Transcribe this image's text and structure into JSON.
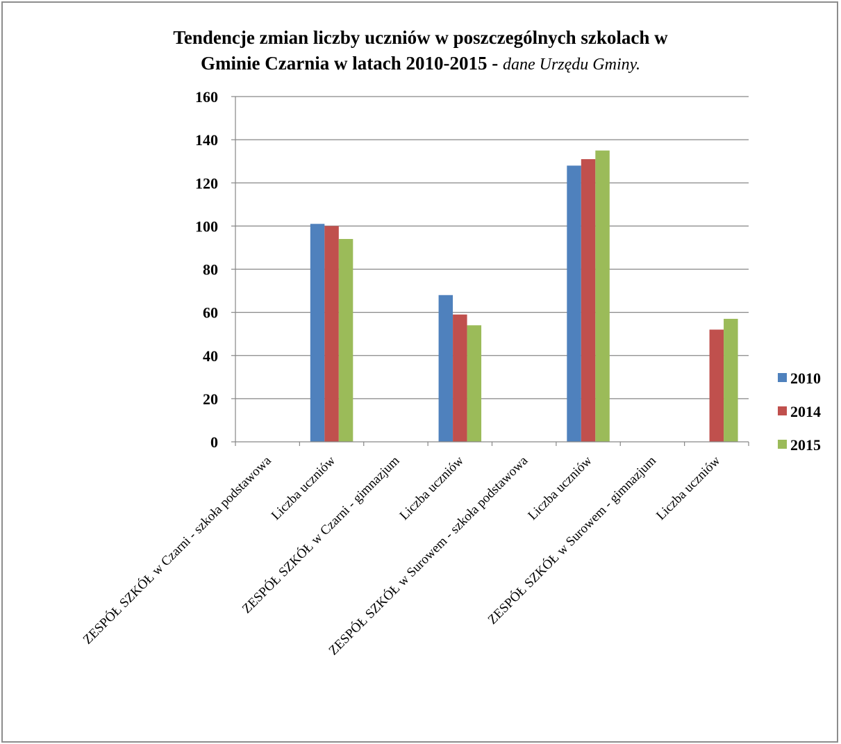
{
  "chart_data": {
    "type": "bar",
    "title_line1": "Tendencje zmian liczby uczniów w poszczególnych szkolach w",
    "title_line2_main": "Gminie Czarnia w latach 2010-2015 - ",
    "title_line2_sub": "dane Urzędu Gminy.",
    "xlabel": "",
    "ylabel": "",
    "ylim": [
      0,
      160
    ],
    "yticks": [
      0,
      20,
      40,
      60,
      80,
      100,
      120,
      140,
      160
    ],
    "grid": true,
    "legend_position": "right",
    "categories": [
      "ZESPÓŁ SZKÓŁ w Czarni - szkoła podstawowa",
      "Liczba uczniów",
      "ZESPÓŁ SZKÓŁ w Czarni - gimnazjum",
      "Liczba uczniów",
      "ZESPÓŁ SZKÓŁ w Surowem - szkoła podstawowa",
      "Liczba uczniów",
      "ZESPÓŁ SZKÓŁ w Surowem - gimnazjum",
      "Liczba uczniów"
    ],
    "series": [
      {
        "name": "2010",
        "color": "#4f81bd",
        "values": [
          null,
          101,
          null,
          68,
          null,
          128,
          null,
          null
        ]
      },
      {
        "name": "2014",
        "color": "#c0504d",
        "values": [
          null,
          100,
          null,
          59,
          null,
          131,
          null,
          52
        ]
      },
      {
        "name": "2015",
        "color": "#9bbb59",
        "values": [
          null,
          94,
          null,
          54,
          null,
          135,
          null,
          57
        ]
      }
    ]
  }
}
